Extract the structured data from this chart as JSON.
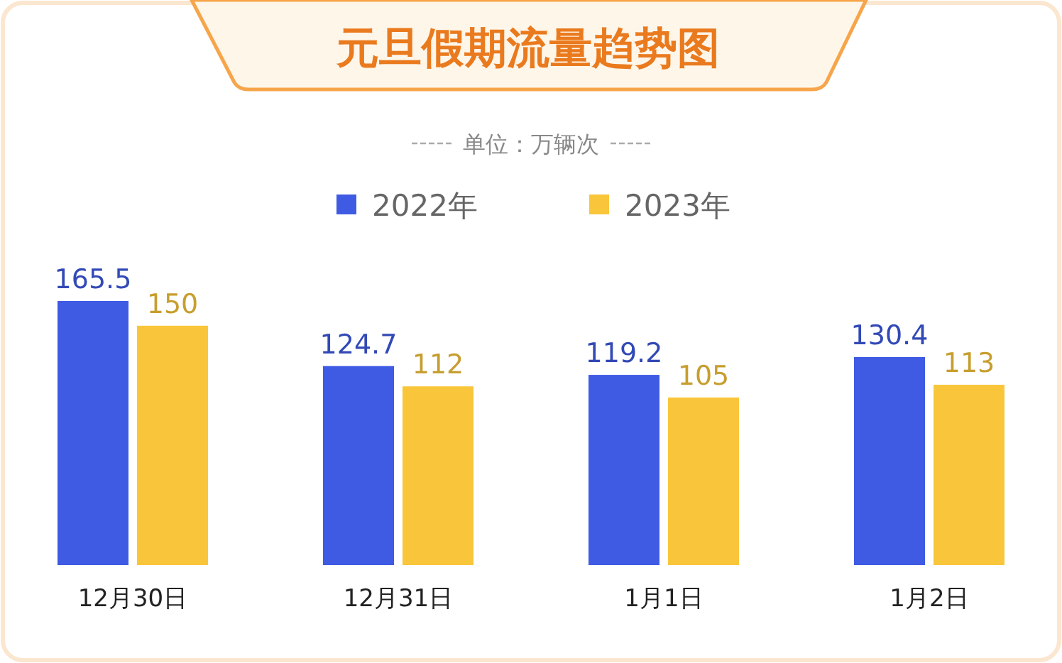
{
  "chart_data": {
    "type": "bar",
    "title": "元旦假期流量趋势图",
    "subtitle": "单位：万辆次",
    "categories": [
      "12月30日",
      "12月31日",
      "1月1日",
      "1月2日"
    ],
    "series": [
      {
        "name": "2022年",
        "color": "#3f5be3",
        "values": [
          165.5,
          124.7,
          119.2,
          130.4
        ]
      },
      {
        "name": "2023年",
        "color": "#f9c63b",
        "values": [
          150,
          112,
          105,
          113
        ]
      }
    ],
    "data_labels": true,
    "legend": "top",
    "grid": false
  }
}
